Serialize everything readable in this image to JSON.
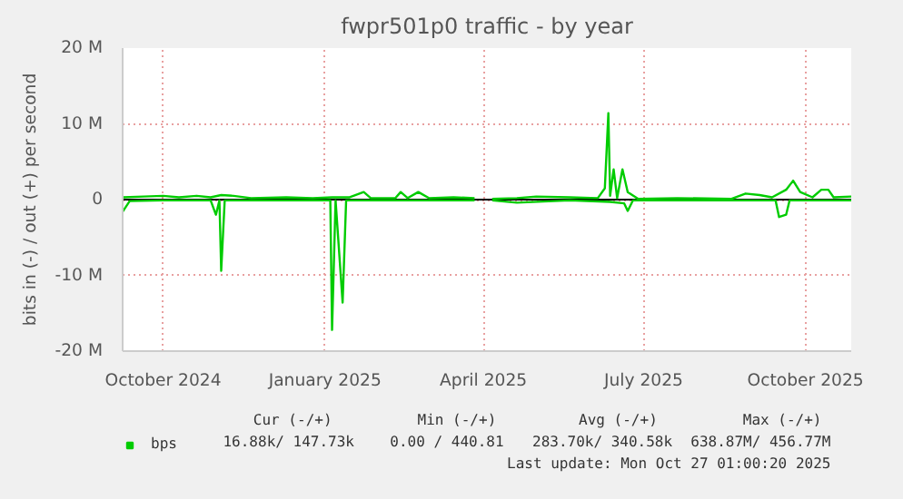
{
  "chart_data": {
    "type": "line",
    "title": "fwpr501p0 traffic - by year",
    "ylabel": "bits in (-) / out (+) per second",
    "xlim": [
      "2024-09-08",
      "2025-10-27"
    ],
    "xticks": [
      {
        "value": "2024-10-01",
        "label": "October 2024"
      },
      {
        "value": "2025-01-01",
        "label": "January 2025"
      },
      {
        "value": "2025-04-01",
        "label": "April 2025"
      },
      {
        "value": "2025-07-01",
        "label": "July 2025"
      },
      {
        "value": "2025-10-01",
        "label": "October 2025"
      }
    ],
    "ylim": [
      -20000000,
      20000000
    ],
    "yticks": [
      {
        "value": -20000000,
        "label": "-20 M"
      },
      {
        "value": -10000000,
        "label": "-10 M"
      },
      0,
      {
        "value": 10000000,
        "label": "10 M"
      },
      {
        "value": 20000000,
        "label": "20 M"
      }
    ],
    "grid": true,
    "legend": "bottom left",
    "series": [
      {
        "name": "bps",
        "color": "#00cc00",
        "x": [
          "2024-09-08",
          "2024-09-20",
          "2024-10-01",
          "2024-10-10",
          "2024-10-20",
          "2024-10-28",
          "2024-11-03",
          "2024-11-10",
          "2024-11-20",
          "2024-12-10",
          "2024-12-25",
          "2025-01-05",
          "2025-01-15",
          "2025-01-23",
          "2025-01-27",
          "2025-02-10",
          "2025-02-13",
          "2025-02-17",
          "2025-02-23",
          "2025-03-01",
          "2025-03-15",
          "2025-03-27",
          "2025-03-30",
          "2025-04-06",
          "2025-04-20",
          "2025-05-01",
          "2025-05-20",
          "2025-06-05",
          "2025-06-09",
          "2025-06-11",
          "2025-06-12",
          "2025-06-14",
          "2025-06-16",
          "2025-06-19",
          "2025-06-22",
          "2025-06-28",
          "2025-07-20",
          "2025-08-20",
          "2025-08-28",
          "2025-09-05",
          "2025-09-12",
          "2025-09-20",
          "2025-09-24",
          "2025-09-28",
          "2025-10-05",
          "2025-10-10",
          "2025-10-14",
          "2025-10-17",
          "2025-10-27"
        ],
        "values": [
          300000,
          400000,
          500000,
          300000,
          500000,
          300000,
          600000,
          500000,
          200000,
          300000,
          200000,
          300000,
          300000,
          1000000,
          200000,
          200000,
          1000000,
          200000,
          1000000,
          200000,
          300000,
          200000,
          null,
          100000,
          200000,
          400000,
          300000,
          200000,
          1500000,
          11400000,
          500000,
          4000000,
          200000,
          4000000,
          1000000,
          100000,
          200000,
          100000,
          800000,
          600000,
          300000,
          1300000,
          2500000,
          1000000,
          300000,
          1300000,
          1300000,
          300000,
          400000
        ]
      },
      {
        "color": "#00cc00",
        "x": [
          "2024-09-08",
          "2024-09-12",
          "2024-10-01",
          "2024-10-28",
          "2024-10-31",
          "2024-11-02",
          "2024-11-03",
          "2024-11-05",
          "2024-12-01",
          "2025-01-04",
          "2025-01-05",
          "2025-01-07",
          "2025-01-11",
          "2025-01-13",
          "2025-02-20",
          "2025-03-27",
          "2025-03-30",
          "2025-04-06",
          "2025-04-20",
          "2025-05-20",
          "2025-06-12",
          "2025-06-20",
          "2025-06-22",
          "2025-06-25",
          "2025-08-20",
          "2025-09-14",
          "2025-09-16",
          "2025-09-20",
          "2025-09-22",
          "2025-10-27"
        ],
        "values": [
          -1600000,
          -200000,
          -100000,
          -100000,
          -2000000,
          -100000,
          -9400000,
          -100000,
          -100000,
          -100000,
          -17200000,
          -100000,
          -13600000,
          -100000,
          -100000,
          -100000,
          null,
          -100000,
          -400000,
          -100000,
          -300000,
          -500000,
          -1500000,
          -100000,
          -100000,
          -100000,
          -2300000,
          -2000000,
          -100000,
          -100000
        ]
      }
    ],
    "annotations": [
      "Cur (-/+)",
      "Min (-/+)",
      "Avg (-/+)",
      "Max (-/+)",
      "16.88k/ 147.73k",
      "0.00 / 440.81",
      "283.70k/ 340.58k",
      "638.87M/ 456.77M",
      "Last update: Mon Oct 27 01:00:20 2025"
    ]
  }
}
